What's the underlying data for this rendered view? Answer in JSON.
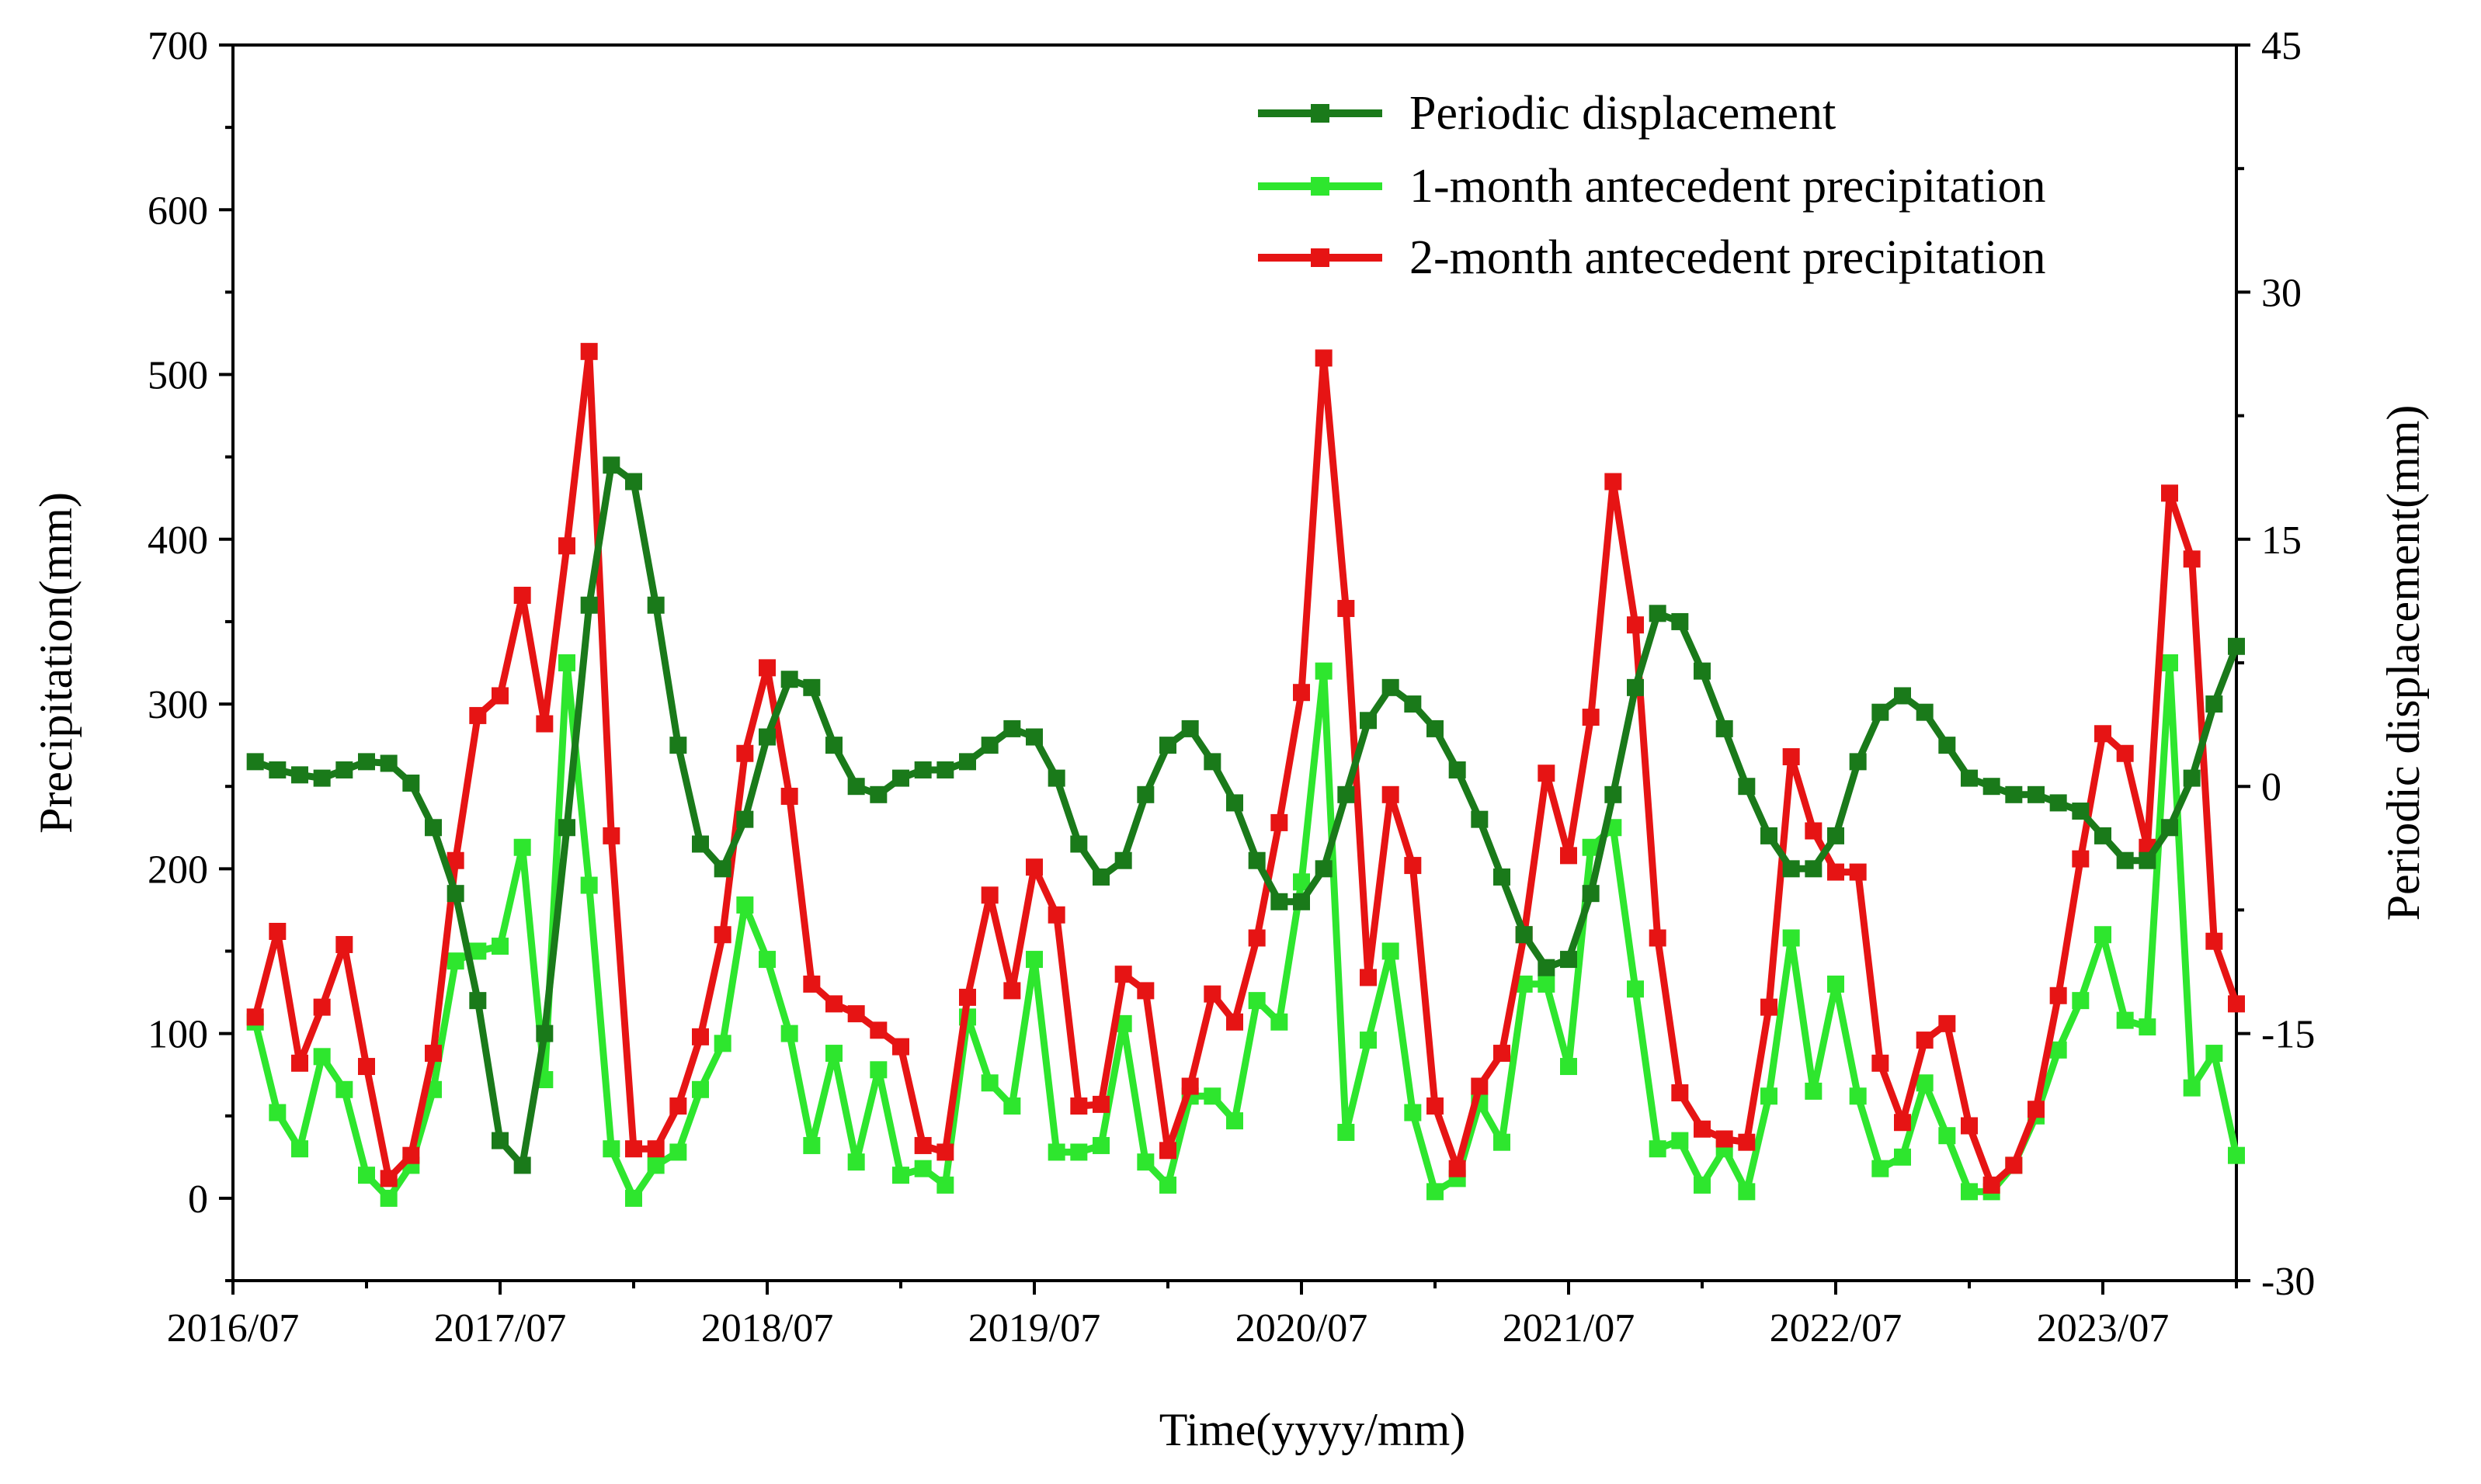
{
  "chart_data": {
    "type": "line",
    "xlabel": "Time(yyyy/mm)",
    "ylabel": "Precipitation(mm)",
    "y2label": "Periodic displacement(mm)",
    "ylim": [
      -50,
      700
    ],
    "y2lim": [
      -30,
      45
    ],
    "yticks": [
      0,
      100,
      200,
      300,
      400,
      500,
      600,
      700
    ],
    "y2ticks": [
      -30,
      -15,
      0,
      15,
      30,
      45
    ],
    "xlim": [
      0,
      90
    ],
    "xticks": [
      {
        "pos": 0,
        "label": "2016/07"
      },
      {
        "pos": 12,
        "label": "2017/07"
      },
      {
        "pos": 24,
        "label": "2018/07"
      },
      {
        "pos": 36,
        "label": "2019/07"
      },
      {
        "pos": 48,
        "label": "2020/07"
      },
      {
        "pos": 60,
        "label": "2021/07"
      },
      {
        "pos": 72,
        "label": "2022/07"
      },
      {
        "pos": 84,
        "label": "2023/07"
      }
    ],
    "legend_position": "top-right",
    "series": [
      {
        "name": "Periodic displacement",
        "axis": "right",
        "color": "#1a7a1a",
        "x": [
          1,
          2,
          3,
          4,
          5,
          6,
          7,
          8,
          9,
          10,
          11,
          12,
          13,
          14,
          15,
          16,
          17,
          18,
          19,
          20,
          21,
          22,
          23,
          24,
          25,
          26,
          27,
          28,
          29,
          30,
          31,
          32,
          33,
          34,
          35,
          36,
          37,
          38,
          39,
          40,
          41,
          42,
          43,
          44,
          45,
          46,
          47,
          48,
          49,
          50,
          51,
          52,
          53,
          54,
          55,
          56,
          57,
          58,
          59,
          60,
          61,
          62,
          63,
          64,
          65,
          66,
          67,
          68,
          69,
          70,
          71,
          72,
          73,
          74,
          75,
          76,
          77,
          78,
          79,
          80,
          81,
          82,
          83,
          84,
          85,
          86,
          87,
          88,
          89,
          90
        ],
        "values": [
          1.5,
          1.0,
          0.7,
          0.5,
          1.0,
          1.5,
          1.4,
          0.2,
          -2.5,
          -6.5,
          -13.0,
          -21.5,
          -23.0,
          -15.0,
          -2.5,
          11.0,
          19.5,
          18.5,
          11.0,
          2.5,
          -3.5,
          -5.0,
          -2.0,
          3.0,
          6.5,
          6.0,
          2.5,
          0.0,
          -0.5,
          0.5,
          1.0,
          1.0,
          1.5,
          2.5,
          3.5,
          3.0,
          0.5,
          -3.5,
          -5.5,
          -4.5,
          -0.5,
          2.5,
          3.5,
          1.5,
          -1.0,
          -4.5,
          -7.0,
          -7.0,
          -5.0,
          -0.5,
          4.0,
          6.0,
          5.0,
          3.5,
          1.0,
          -2.0,
          -5.5,
          -9.0,
          -11.0,
          -10.5,
          -6.5,
          -0.5,
          6.0,
          10.5,
          10.0,
          7.0,
          3.5,
          0.0,
          -3.0,
          -5.0,
          -5.0,
          -3.0,
          1.5,
          4.5,
          5.5,
          4.5,
          2.5,
          0.5,
          0.0,
          -0.5,
          -0.5,
          -1.0,
          -1.5,
          -3.0,
          -4.5,
          -4.5,
          -2.5,
          0.5,
          5.0,
          8.5
        ]
      },
      {
        "name": "1-month antecedent precipitation",
        "axis": "left",
        "color": "#2ee62e",
        "x": [
          1,
          2,
          3,
          4,
          5,
          6,
          7,
          8,
          9,
          10,
          11,
          12,
          13,
          14,
          15,
          16,
          17,
          18,
          19,
          20,
          21,
          22,
          23,
          24,
          25,
          26,
          27,
          28,
          29,
          30,
          31,
          32,
          33,
          34,
          35,
          36,
          37,
          38,
          39,
          40,
          41,
          42,
          43,
          44,
          45,
          46,
          47,
          48,
          49,
          50,
          51,
          52,
          53,
          54,
          55,
          56,
          57,
          58,
          59,
          60,
          61,
          62,
          63,
          64,
          65,
          66,
          67,
          68,
          69,
          70,
          71,
          72,
          73,
          74,
          75,
          76,
          77,
          78,
          79,
          80,
          81,
          82,
          83,
          84,
          85,
          86,
          87,
          88,
          89,
          90
        ],
        "values": [
          107,
          52,
          30,
          86,
          66,
          14,
          0,
          20,
          66,
          144,
          150,
          153,
          213,
          72,
          325,
          190,
          30,
          0,
          20,
          28,
          66,
          94,
          178,
          145,
          100,
          32,
          88,
          22,
          78,
          14,
          18,
          8,
          110,
          70,
          56,
          145,
          28,
          28,
          32,
          106,
          22,
          8,
          62,
          62,
          47,
          120,
          107,
          192,
          320,
          40,
          96,
          150,
          52,
          4,
          12,
          58,
          34,
          130,
          130,
          80,
          213,
          225,
          127,
          30,
          35,
          8,
          30,
          4,
          62,
          158,
          65,
          130,
          62,
          18,
          25,
          70,
          38,
          4,
          4,
          20,
          50,
          90,
          120,
          160,
          108,
          104,
          325,
          67,
          88,
          26
        ]
      },
      {
        "name": "2-month antecedent precipitation",
        "axis": "left",
        "color": "#e61414",
        "x": [
          1,
          2,
          3,
          4,
          5,
          6,
          7,
          8,
          9,
          10,
          11,
          12,
          13,
          14,
          15,
          16,
          17,
          18,
          19,
          20,
          21,
          22,
          23,
          24,
          25,
          26,
          27,
          28,
          29,
          30,
          31,
          32,
          33,
          34,
          35,
          36,
          37,
          38,
          39,
          40,
          41,
          42,
          43,
          44,
          45,
          46,
          47,
          48,
          49,
          50,
          51,
          52,
          53,
          54,
          55,
          56,
          57,
          58,
          59,
          60,
          61,
          62,
          63,
          64,
          65,
          66,
          67,
          68,
          69,
          70,
          71,
          72,
          73,
          74,
          75,
          76,
          77,
          78,
          79,
          80,
          81,
          82,
          83,
          84,
          85,
          86,
          87,
          88,
          89,
          90
        ],
        "values": [
          110,
          162,
          82,
          116,
          154,
          80,
          12,
          26,
          88,
          205,
          293,
          305,
          366,
          288,
          396,
          514,
          220,
          30,
          30,
          56,
          98,
          160,
          270,
          322,
          244,
          130,
          118,
          112,
          102,
          92,
          32,
          28,
          122,
          184,
          126,
          201,
          172,
          56,
          57,
          136,
          126,
          29,
          68,
          124,
          107,
          158,
          228,
          307,
          510,
          358,
          134,
          245,
          202,
          56,
          18,
          68,
          88,
          160,
          258,
          208,
          292,
          435,
          348,
          158,
          64,
          42,
          36,
          34,
          116,
          268,
          223,
          198,
          198,
          82,
          46,
          96,
          106,
          44,
          8,
          20,
          54,
          123,
          206,
          282,
          270,
          213,
          428,
          388,
          156,
          118
        ]
      }
    ]
  }
}
